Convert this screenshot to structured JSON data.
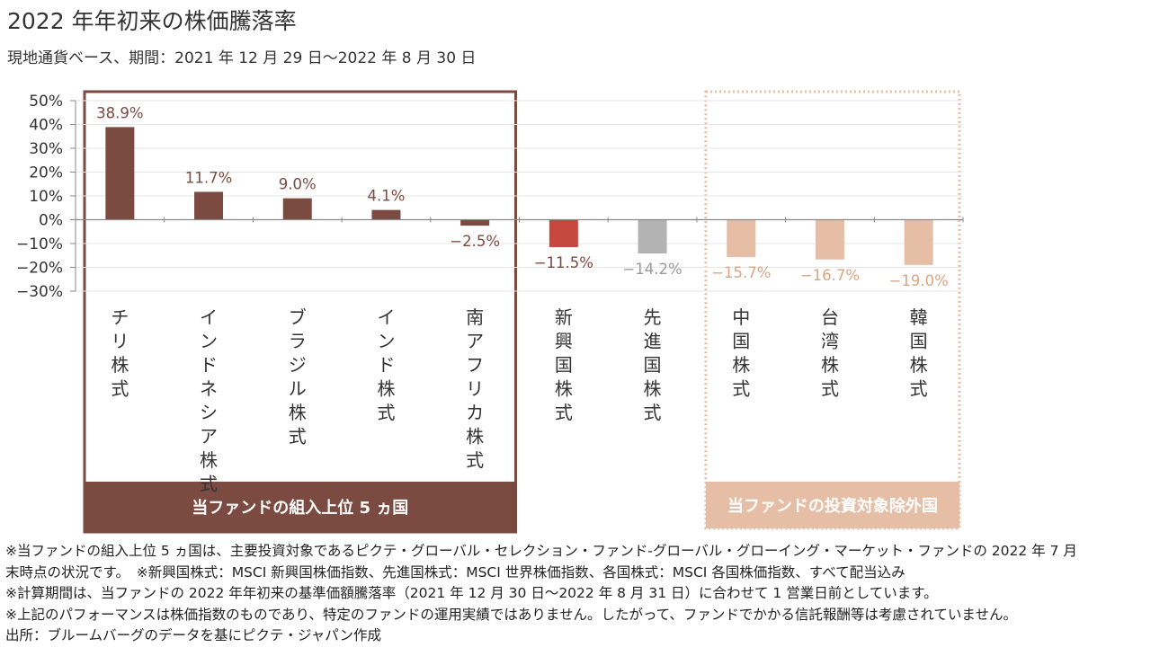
{
  "title": "2022 年年初来の株価騰落率",
  "subtitle": "現地通貨ベース、期間：2021 年 12 月 29 日～2022 年 8 月 30 日",
  "chart_data": {
    "type": "bar",
    "title": "2022 年年初来の株価騰落率",
    "ylim": [
      -30,
      50
    ],
    "yticks": [
      "50%",
      "40%",
      "30%",
      "20%",
      "10%",
      "0%",
      "−10%",
      "−20%",
      "−30%"
    ],
    "ytick_values": [
      50,
      40,
      30,
      20,
      10,
      0,
      -10,
      -20,
      -30
    ],
    "categories": [
      "チリ株式",
      "インドネシア株式",
      "ブラジル株式",
      "インド株式",
      "南アフリカ株式",
      "新興国株式",
      "先進国株式",
      "中国株式",
      "台湾株式",
      "韓国株式"
    ],
    "values": [
      38.9,
      11.7,
      9.0,
      4.1,
      -2.5,
      -11.5,
      -14.2,
      -15.7,
      -16.7,
      -19.0
    ],
    "labels": [
      "38.9%",
      "11.7%",
      "9.0%",
      "4.1%",
      "−2.5%",
      "−11.5%",
      "−14.2%",
      "−15.7%",
      "−16.7%",
      "−19.0%"
    ],
    "bar_colors": [
      "#7b4a40",
      "#7b4a40",
      "#7b4a40",
      "#7b4a40",
      "#7b4a40",
      "#c5473d",
      "#b3b3b3",
      "#e6bea6",
      "#e6bea6",
      "#e6bea6"
    ],
    "label_colors": [
      "#7b4a40",
      "#7b4a40",
      "#7b4a40",
      "#7b4a40",
      "#7b4a40",
      "#7b4a40",
      "#9a9a9a",
      "#d9a584",
      "#d9a584",
      "#d9a584"
    ],
    "grid": true,
    "groups": [
      {
        "label": "当ファンドの組入上位 5 ヵ国",
        "color": "#7b4a40",
        "style": "solid",
        "members": [
          0,
          1,
          2,
          3,
          4
        ]
      },
      {
        "label": "当ファンドの投資対象除外国",
        "color": "#e6bea6",
        "style": "dotted",
        "members": [
          7,
          8,
          9
        ]
      }
    ]
  },
  "footnotes": [
    "※当ファンドの組入上位 5 ヵ国は、主要投資対象であるピクテ・グローバル・セレクション・ファンド-グローバル・グローイング・マーケット・ファンドの 2022 年 7 月",
    "末時点の状況です。　※新興国株式：MSCI 新興国株価指数、先進国株式：MSCI 世界株価指数、各国株式：MSCI 各国株価指数、すべて配当込み",
    "※計算期間は、当ファンドの 2022 年年初来の基準価額騰落率（2021 年 12 月 30 日～2022 年 8 月 31 日）に合わせて 1 営業日前としています。",
    "※上記のパフォーマンスは株価指数のものであり、特定のファンドの運用実績ではありません。したがって、ファンドでかかる信託報酬等は考慮されていません。",
    "出所：ブルームバーグのデータを基にピクテ・ジャパン作成"
  ]
}
